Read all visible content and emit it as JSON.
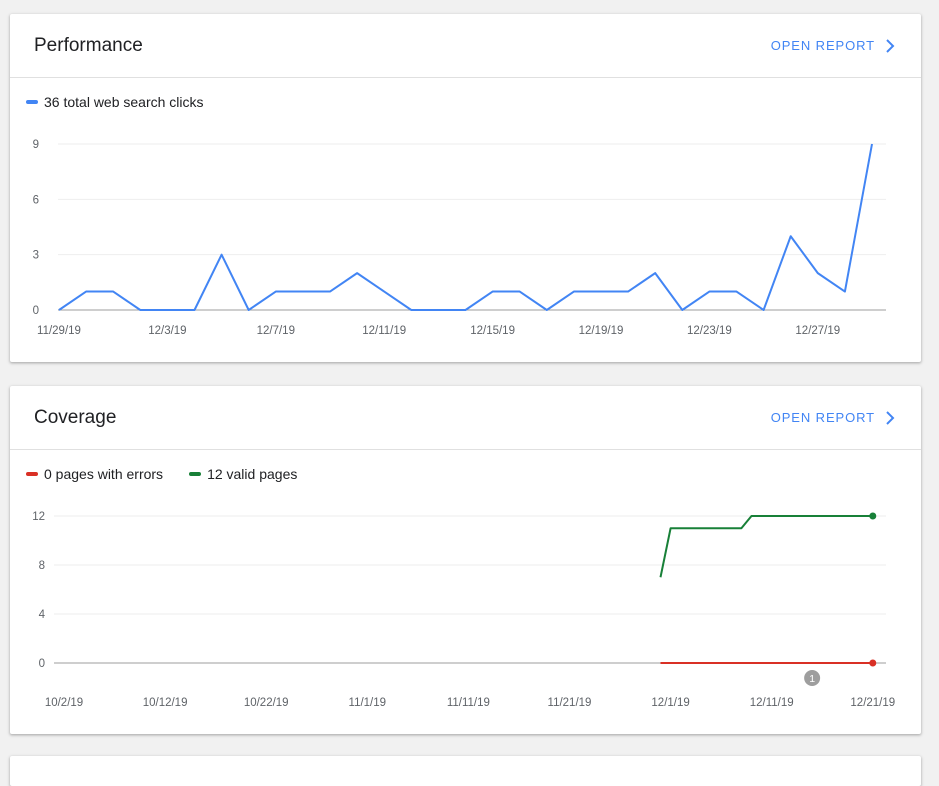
{
  "colors": {
    "accent": "#4285f4",
    "clicks": "#4285f4",
    "errors": "#d93025",
    "valid": "#188038",
    "grid": "#eeeeee",
    "baseline": "#9e9e9e",
    "annotation": "#9e9e9e"
  },
  "performance": {
    "title": "Performance",
    "open_report": "OPEN REPORT",
    "legend": [
      {
        "label": "36 total web search clicks",
        "color": "#4285f4"
      }
    ]
  },
  "coverage": {
    "title": "Coverage",
    "open_report": "OPEN REPORT",
    "legend": [
      {
        "label": "0 pages with errors",
        "color": "#d93025"
      },
      {
        "label": "12 valid pages",
        "color": "#188038"
      }
    ]
  },
  "chart_data": [
    {
      "type": "line",
      "x_ticks": [
        "11/29/19",
        "12/3/19",
        "12/7/19",
        "12/11/19",
        "12/15/19",
        "12/19/19",
        "12/23/19",
        "12/27/19"
      ],
      "x_range": [
        "11/29/19",
        "12/29/19"
      ],
      "ylim": [
        0,
        9
      ],
      "y_ticks": [
        0,
        3,
        6,
        9
      ],
      "grid": true,
      "series": [
        {
          "name": "36 total web search clicks",
          "color": "#4285f4",
          "values": [
            0,
            1,
            1,
            0,
            0,
            0,
            3,
            0,
            1,
            1,
            1,
            2,
            1,
            0,
            0,
            0,
            1,
            1,
            0,
            1,
            1,
            1,
            2,
            0,
            1,
            1,
            0,
            4,
            2,
            1,
            9
          ]
        }
      ]
    },
    {
      "type": "line",
      "x_ticks": [
        "10/2/19",
        "10/12/19",
        "10/22/19",
        "11/1/19",
        "11/11/19",
        "11/21/19",
        "12/1/19",
        "12/11/19",
        "12/21/19"
      ],
      "x_range": [
        "10/2/19",
        "12/21/19"
      ],
      "ylim": [
        0,
        12
      ],
      "y_ticks": [
        0,
        4,
        8,
        12
      ],
      "grid": true,
      "series": [
        {
          "name": "0 pages with errors",
          "color": "#d93025",
          "points": [
            [
              "11/30/19",
              0
            ],
            [
              "12/21/19",
              0
            ]
          ]
        },
        {
          "name": "12 valid pages",
          "color": "#188038",
          "points": [
            [
              "11/30/19",
              7
            ],
            [
              "12/1/19",
              11
            ],
            [
              "12/8/19",
              11
            ],
            [
              "12/9/19",
              12
            ],
            [
              "12/21/19",
              12
            ]
          ]
        }
      ],
      "annotations": [
        {
          "label": "1",
          "x": "12/15/19"
        }
      ]
    }
  ]
}
